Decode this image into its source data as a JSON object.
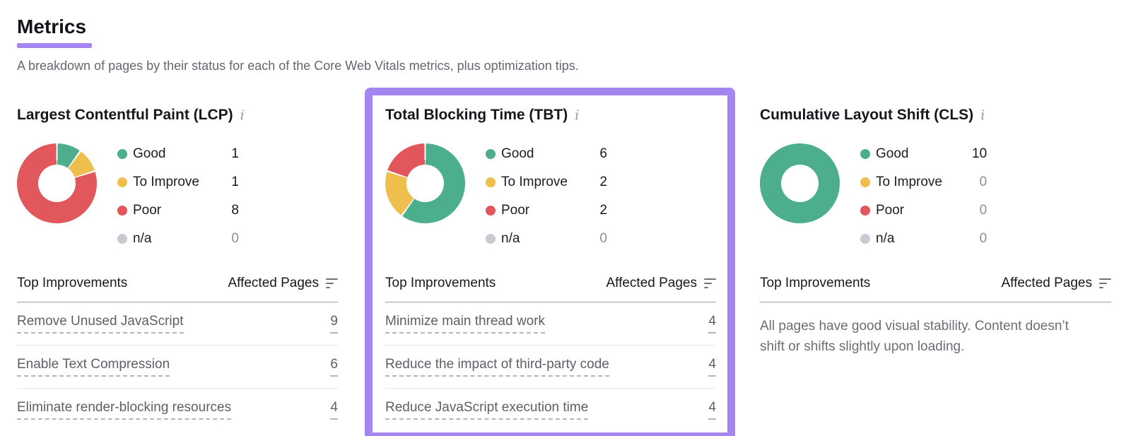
{
  "page": {
    "title": "Metrics",
    "subtitle": "A breakdown of pages by their status for each of the Core Web Vitals metrics, plus optimization tips."
  },
  "colors": {
    "accent_purple": "#a585f0",
    "highlight_border": "#a585f0",
    "series": [
      "#4cae8c",
      "#eebf4c",
      "#e2575c",
      "#c7cad1"
    ],
    "good": "#4cae8c",
    "to_improve": "#eebf4c",
    "poor": "#e2575c",
    "na": "#c7cad1"
  },
  "icons": {
    "info": "i"
  },
  "table_header": {
    "improvements": "Top Improvements",
    "affected_pages": "Affected Pages"
  },
  "metrics": [
    {
      "id": "lcp",
      "title": "Largest Contentful Paint (LCP)",
      "legend": [
        {
          "label": "Good",
          "value": "1"
        },
        {
          "label": "To Improve",
          "value": "1"
        },
        {
          "label": "Poor",
          "value": "8"
        },
        {
          "label": "n/a",
          "value": "0"
        }
      ],
      "improvements": [
        {
          "label": "Remove Unused JavaScript",
          "value": "9"
        },
        {
          "label": "Enable Text Compression",
          "value": "6"
        },
        {
          "label": "Eliminate render-blocking resources",
          "value": "4"
        }
      ],
      "chart_data": {
        "type": "pie",
        "title": "Largest Contentful Paint (LCP)",
        "categories": [
          "Good",
          "To Improve",
          "Poor",
          "n/a"
        ],
        "values": [
          1,
          1,
          8,
          0
        ],
        "legend_position": "right"
      }
    },
    {
      "id": "tbt",
      "title": "Total Blocking Time (TBT)",
      "highlighted": true,
      "legend": [
        {
          "label": "Good",
          "value": "6"
        },
        {
          "label": "To Improve",
          "value": "2"
        },
        {
          "label": "Poor",
          "value": "2"
        },
        {
          "label": "n/a",
          "value": "0"
        }
      ],
      "improvements": [
        {
          "label": "Minimize main thread work",
          "value": "4"
        },
        {
          "label": "Reduce the impact of third-party code",
          "value": "4"
        },
        {
          "label": "Reduce JavaScript execution time",
          "value": "4"
        }
      ],
      "chart_data": {
        "type": "pie",
        "title": "Total Blocking Time (TBT)",
        "categories": [
          "Good",
          "To Improve",
          "Poor",
          "n/a"
        ],
        "values": [
          6,
          2,
          2,
          0
        ],
        "legend_position": "right"
      }
    },
    {
      "id": "cls",
      "title": "Cumulative Layout Shift (CLS)",
      "legend": [
        {
          "label": "Good",
          "value": "10"
        },
        {
          "label": "To Improve",
          "value": "0"
        },
        {
          "label": "Poor",
          "value": "0"
        },
        {
          "label": "n/a",
          "value": "0"
        }
      ],
      "note": "All pages have good visual stability. Content doesn’t shift or shifts slightly upon loading.",
      "chart_data": {
        "type": "pie",
        "title": "Cumulative Layout Shift (CLS)",
        "categories": [
          "Good",
          "To Improve",
          "Poor",
          "n/a"
        ],
        "values": [
          10,
          0,
          0,
          0
        ],
        "legend_position": "right"
      }
    }
  ]
}
